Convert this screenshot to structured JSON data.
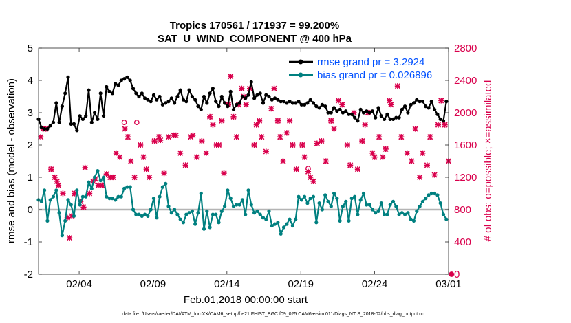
{
  "chart_data": {
    "type": "line",
    "title": "Tropics 170561 / 171937 = 99.200%",
    "subtitle": "SAT_U_WIND_COMPONENT @ 400 hPa",
    "xlabel": "Feb.01,2018 00:00:00 start",
    "ylabel_left": "rmse and bias (model - observation)",
    "ylabel_right": "# of obs: o=possible; ×=assimilated",
    "x_ticks": [
      "02/04",
      "02/09",
      "02/14",
      "02/19",
      "02/24",
      "03/01"
    ],
    "x_tick_days": [
      3,
      8,
      13,
      18,
      23,
      28
    ],
    "xlim": [
      0.25,
      28.0
    ],
    "ylim_left": [
      -2,
      5
    ],
    "yticks_left": [
      "-2",
      "-1",
      "0",
      "1",
      "2",
      "3",
      "4",
      "5"
    ],
    "ylim_right": [
      0,
      2800
    ],
    "yticks_right": [
      "0",
      "400",
      "800",
      "1200",
      "1600",
      "2000",
      "2400",
      "2800"
    ],
    "legend_location": "top-right",
    "colors": {
      "rmse": "#000000",
      "bias": "#008080",
      "obs": "#d9004c",
      "zero": "#b4b4b4"
    },
    "footnote": "data file: /Users/raeder/DAI/ATM_forcXX/CAM6_setup/f.e21.FHIST_BGC.f09_025.CAM6assim.011/Diags_NTrS_2018-02/obs_diag_output.nc",
    "series": [
      {
        "name": "rmse grand pr = 3.2924",
        "color": "#000000",
        "values": [
          2.8,
          2.55,
          2.5,
          2.5,
          2.6,
          2.7,
          3.3,
          2.7,
          3.2,
          3.6,
          4.1,
          2.65,
          2.65,
          2.45,
          2.9,
          2.8,
          2.9,
          3.7,
          2.7,
          3.0,
          2.8,
          3.6,
          2.9,
          3.8,
          3.65,
          3.6,
          3.9,
          3.85,
          4.0,
          4.05,
          4.1,
          4.0,
          3.75,
          3.6,
          3.5,
          3.6,
          3.45,
          3.4,
          3.35,
          3.55,
          3.4,
          3.5,
          3.25,
          3.3,
          3.35,
          3.45,
          3.3,
          3.5,
          3.7,
          3.4,
          3.35,
          3.7,
          3.5,
          3.4,
          3.2,
          3.1,
          3.5,
          3.3,
          3.6,
          3.75,
          3.35,
          3.2,
          3.5,
          3.3,
          3.2,
          3.65,
          3.1,
          3.25,
          3.3,
          3.5,
          3.45,
          3.55,
          3.95,
          3.45,
          3.55,
          3.6,
          3.3,
          3.55,
          3.5,
          3.4,
          3.45,
          3.4,
          3.35,
          3.35,
          3.3,
          3.35,
          3.3,
          3.3,
          3.35,
          3.25,
          3.25,
          3.3,
          3.4,
          3.3,
          3.2,
          3.15,
          3.25,
          3.2,
          3.0,
          3.0,
          3.15,
          3.05,
          3.1,
          3.0,
          3.05,
          2.95,
          2.95,
          2.85,
          2.75,
          3.1,
          3.0,
          3.05,
          3.0,
          3.05,
          2.85,
          3.15,
          2.9,
          2.8,
          2.95,
          2.8,
          2.8,
          2.85,
          2.85,
          3.1,
          3.2,
          3.0,
          3.25,
          3.3,
          3.4,
          3.35,
          3.35,
          3.2,
          3.15,
          3.35,
          3.1,
          2.95,
          2.8,
          2.75,
          3.35
        ]
      },
      {
        "name": "bias grand pr = 0.026896",
        "color": "#008080",
        "values": [
          0.3,
          0.25,
          0.6,
          -0.35,
          0.3,
          0.4,
          0.6,
          -0.1,
          -0.8,
          -0.35,
          0.3,
          0.15,
          -0.2,
          0.6,
          0.15,
          0.4,
          0.4,
          0.85,
          0.65,
          1.0,
          1.2,
          0.9,
          1.0,
          0.4,
          0.35,
          0.35,
          0.3,
          0.4,
          0.4,
          0.65,
          0.7,
          0.7,
          0.0,
          -0.15,
          -0.15,
          -0.2,
          -0.15,
          -0.2,
          0.0,
          0.35,
          -0.25,
          0.4,
          0.7,
          0.8,
          0.1,
          -0.1,
          0.0,
          -0.15,
          -0.3,
          -0.4,
          -0.15,
          -0.1,
          -0.05,
          -0.45,
          -0.1,
          0.5,
          -0.6,
          -0.05,
          -0.55,
          -0.15,
          -0.15,
          -0.4,
          -0.05,
          0.1,
          0.6,
          0.35,
          0.1,
          0.15,
          0.15,
          0.3,
          -0.15,
          0.6,
          0.15,
          -0.1,
          -0.05,
          -0.15,
          -0.25,
          -0.3,
          -0.05,
          -0.5,
          -0.45,
          -0.4,
          -0.75,
          -0.55,
          -0.45,
          -0.3,
          -0.5,
          -0.3,
          0.4,
          0.3,
          0.4,
          0.2,
          0.35,
          0.4,
          -0.4,
          0.2,
          0.0,
          0.45,
          0.25,
          0.1,
          0.5,
          0.35,
          -0.35,
          0.1,
          0.25,
          -0.35,
          0.35,
          0.4,
          -0.15,
          0.3,
          0.5,
          0.15,
          0.15,
          0.0,
          -0.1,
          -0.05,
          0.2,
          -0.15,
          -0.15,
          0.15,
          0.25,
          0.1,
          -0.15,
          -0.1,
          -0.15,
          -0.1,
          -0.3,
          -0.35,
          -0.05,
          0.1,
          0.25,
          0.35,
          0.45,
          0.5,
          0.5,
          0.45,
          0.2,
          -0.15,
          -0.3
        ]
      }
    ],
    "obs_assimilated": [
      [
        0.4,
        1700
      ],
      [
        0.55,
        1800
      ],
      [
        0.75,
        1800
      ],
      [
        1.1,
        1300
      ],
      [
        1.35,
        1200
      ],
      [
        1.5,
        1150
      ],
      [
        1.6,
        1100
      ],
      [
        1.9,
        1000
      ],
      [
        2.2,
        700
      ],
      [
        2.35,
        450
      ],
      [
        2.5,
        720
      ],
      [
        2.7,
        1000
      ],
      [
        3.1,
        900
      ],
      [
        3.3,
        830
      ],
      [
        3.4,
        1320
      ],
      [
        3.7,
        1000
      ],
      [
        3.95,
        1150
      ],
      [
        4.1,
        1180
      ],
      [
        4.3,
        1100
      ],
      [
        4.55,
        1100
      ],
      [
        4.85,
        1240
      ],
      [
        5.1,
        1200
      ],
      [
        5.3,
        1200
      ],
      [
        5.5,
        1500
      ],
      [
        5.75,
        1450
      ],
      [
        6.1,
        1800
      ],
      [
        6.3,
        1700
      ],
      [
        6.5,
        1400
      ],
      [
        6.75,
        1200
      ],
      [
        7.15,
        1600
      ],
      [
        7.35,
        1450
      ],
      [
        7.55,
        1300
      ],
      [
        7.75,
        1200
      ],
      [
        8.1,
        1650
      ],
      [
        8.4,
        1700
      ],
      [
        8.5,
        1660
      ],
      [
        8.75,
        1250
      ],
      [
        9.05,
        1700
      ],
      [
        9.4,
        1720
      ],
      [
        9.55,
        1720
      ],
      [
        9.85,
        1500
      ],
      [
        10.2,
        1350
      ],
      [
        10.55,
        1700
      ],
      [
        10.7,
        1720
      ],
      [
        10.95,
        1450
      ],
      [
        11.3,
        1650
      ],
      [
        11.6,
        1500
      ],
      [
        11.85,
        1950
      ],
      [
        12.05,
        1850
      ],
      [
        12.3,
        1600
      ],
      [
        12.45,
        1600
      ],
      [
        12.65,
        1900
      ],
      [
        12.8,
        1250
      ],
      [
        13.1,
        2100
      ],
      [
        13.25,
        2450
      ],
      [
        13.45,
        1950
      ],
      [
        13.65,
        1700
      ],
      [
        13.8,
        2100
      ],
      [
        14.0,
        2300
      ],
      [
        14.15,
        2200
      ],
      [
        14.3,
        2100
      ],
      [
        14.55,
        2300
      ],
      [
        14.85,
        1600
      ],
      [
        15.0,
        1850
      ],
      [
        15.2,
        1900
      ],
      [
        15.35,
        1700
      ],
      [
        15.65,
        1520
      ],
      [
        16.0,
        2050
      ],
      [
        16.2,
        2300
      ],
      [
        16.45,
        1900
      ],
      [
        16.6,
        1700
      ],
      [
        16.8,
        1400
      ],
      [
        17.05,
        1750
      ],
      [
        17.25,
        1900
      ],
      [
        17.45,
        1600
      ],
      [
        17.7,
        1300
      ],
      [
        18.1,
        1600
      ],
      [
        18.25,
        1450
      ],
      [
        18.5,
        1270
      ],
      [
        18.65,
        1200
      ],
      [
        18.85,
        1150
      ],
      [
        19.1,
        1620
      ],
      [
        19.4,
        1650
      ],
      [
        19.7,
        1400
      ],
      [
        20.05,
        1900
      ],
      [
        20.25,
        1800
      ],
      [
        20.55,
        2150
      ],
      [
        20.8,
        2100
      ],
      [
        21.15,
        1600
      ],
      [
        21.35,
        1350
      ],
      [
        21.6,
        2000
      ],
      [
        21.85,
        1300
      ],
      [
        22.15,
        1650
      ],
      [
        22.35,
        1850
      ],
      [
        22.55,
        2000
      ],
      [
        22.85,
        1500
      ],
      [
        23.0,
        1450
      ],
      [
        23.3,
        1700
      ],
      [
        23.55,
        1450
      ],
      [
        23.75,
        1550
      ],
      [
        24.0,
        2150
      ],
      [
        24.1,
        2100
      ],
      [
        24.55,
        2330
      ],
      [
        24.8,
        1700
      ],
      [
        25.2,
        1500
      ],
      [
        25.5,
        1400
      ],
      [
        25.75,
        1800
      ],
      [
        26.05,
        1200
      ],
      [
        26.25,
        1500
      ],
      [
        26.55,
        1350
      ],
      [
        26.75,
        1700
      ],
      [
        27.05,
        1230
      ],
      [
        27.3,
        1850
      ],
      [
        27.5,
        2150
      ],
      [
        27.75,
        1850
      ],
      [
        28.0,
        1400
      ]
    ],
    "obs_possible": [
      [
        6.05,
        1880
      ],
      [
        6.9,
        1880
      ],
      [
        18.5,
        1310
      ],
      [
        13.1,
        2100
      ],
      [
        28.2,
        0
      ]
    ]
  }
}
